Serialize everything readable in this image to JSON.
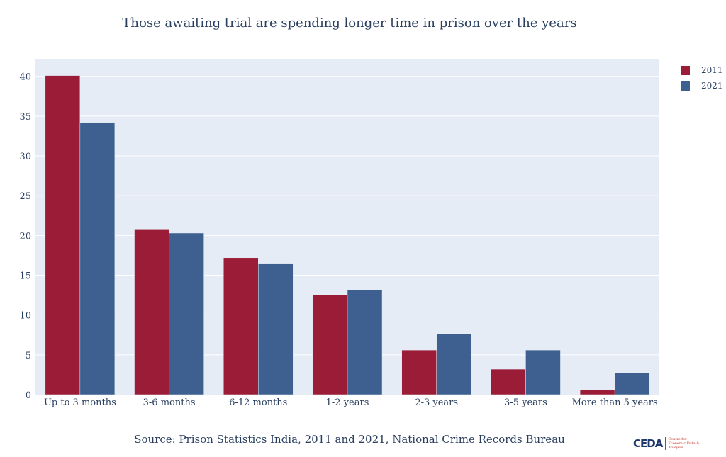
{
  "chart_data": {
    "type": "bar",
    "title": "Those awaiting trial are spending longer time in prison over the years",
    "categories": [
      "Up to 3 months",
      "3-6 months",
      "6-12 months",
      "1-2 years",
      "2-3 years",
      "3-5 years",
      "More than 5 years"
    ],
    "series": [
      {
        "name": "2011",
        "color": "#9b1c37",
        "values": [
          40.1,
          20.8,
          17.2,
          12.5,
          5.6,
          3.2,
          0.6
        ]
      },
      {
        "name": "2021",
        "color": "#3d6090",
        "values": [
          34.2,
          20.3,
          16.5,
          13.2,
          7.6,
          5.6,
          2.7
        ]
      }
    ],
    "yticks": [
      0,
      5,
      10,
      15,
      20,
      25,
      30,
      35,
      40
    ],
    "ylim": [
      0,
      42.2
    ],
    "grid": true,
    "legend": "top-right",
    "background": "#e5ecf6"
  },
  "source": "Source: Prison Statistics India, 2011 and 2021, National Crime Records Bureau",
  "logo": {
    "mark": "CEDA",
    "text": "Centre for Economic Data & Analysis"
  }
}
